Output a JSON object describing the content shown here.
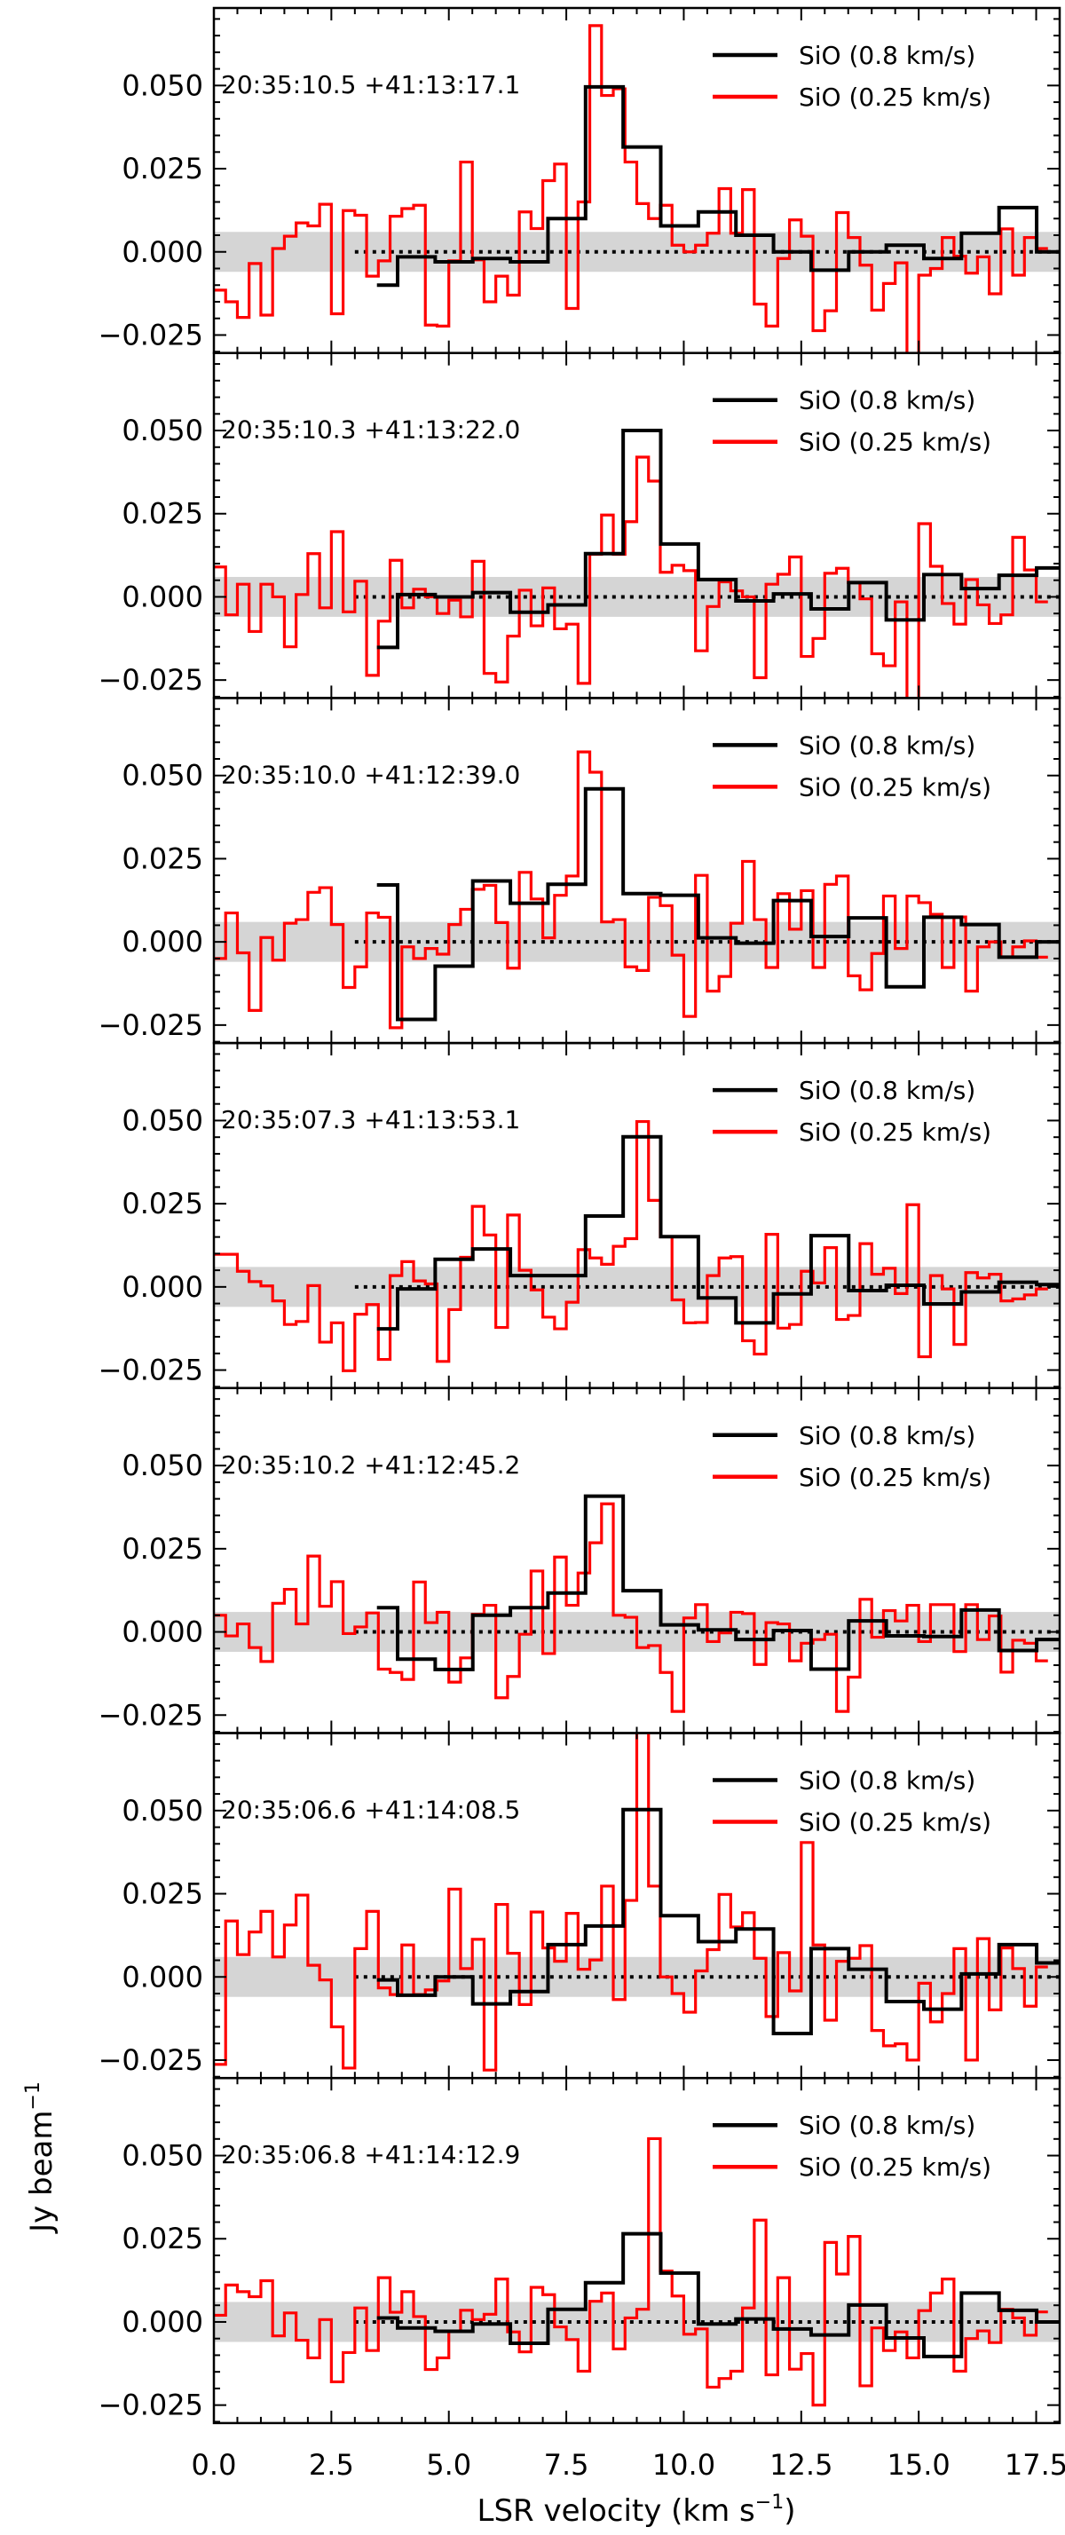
{
  "chart_data": {
    "type": "line",
    "title": "",
    "xlabel": "LSR velocity (km s",
    "xlabel_sup": "−1",
    "xlabel_end": ")",
    "ylabel": "Jy beam",
    "ylabel_sup": "−1",
    "xlim": [
      0,
      18
    ],
    "ylim": [
      -0.0304,
      0.0733
    ],
    "xticks": [
      0,
      2.5,
      5,
      7.5,
      10,
      12.5,
      15,
      17.5
    ],
    "xtick_labels": [
      "0.0",
      "2.5",
      "5.0",
      "7.5",
      "10.0",
      "12.5",
      "15.0",
      "17.5"
    ],
    "yticks": [
      -0.025,
      0,
      0.025,
      0.05
    ],
    "ytick_labels": [
      "−0.025",
      "0.000",
      "0.025",
      "0.050"
    ],
    "noise_band": [
      -0.006,
      0.006
    ],
    "zero_line_range": [
      3.0,
      18
    ],
    "legend_placement": "top-right",
    "colors": {
      "black_series": "#000000",
      "red_series": "#ff0000",
      "band": "#d3d3d3"
    },
    "red_x0": 0,
    "red_width": 0.25,
    "black_start": 3.47,
    "black_first_bin_end": 3.91,
    "black_width": 0.8,
    "legend": [
      "SiO (0.8 km/s)",
      "SiO (0.25 km/s)"
    ],
    "panels": [
      {
        "label": "20:35:10.5 +41:13:17.1",
        "black": [
          -0.01,
          -0.0015,
          -0.003,
          -0.002,
          -0.003,
          0.01,
          0.0496,
          0.0315,
          0.0078,
          0.012,
          0.005,
          0.0,
          -0.0055,
          0.0,
          0.002,
          -0.002,
          0.0056,
          0.0133,
          0.0
        ],
        "red": [
          -0.0115,
          -0.015,
          -0.0197,
          -0.0035,
          -0.019,
          0.001,
          0.0047,
          0.0087,
          0.0078,
          0.0143,
          -0.0186,
          0.0124,
          0.011,
          -0.0073,
          -0.0027,
          0.0107,
          0.013,
          0.014,
          -0.022,
          -0.0223,
          -0.0027,
          0.027,
          -0.0024,
          -0.015,
          -0.0073,
          -0.013,
          0.012,
          0.007,
          0.0214,
          0.0264,
          -0.017,
          0.015,
          0.068,
          0.047,
          0.049,
          0.027,
          0.0145,
          0.01,
          0.014,
          0.002,
          0.0,
          0.002,
          0.0056,
          0.019,
          0.0056,
          0.0187,
          -0.0157,
          -0.0223,
          -0.002,
          0.0096,
          0.0047,
          -0.0237,
          -0.0177,
          0.0118,
          0.0043,
          -0.004,
          -0.0175,
          -0.0095,
          -0.0033,
          -0.031,
          -0.007,
          -0.005,
          0.0043,
          -0.0013,
          -0.0064,
          -0.0015,
          -0.0126,
          0.0069,
          -0.007,
          0.0043,
          0.001
        ]
      },
      {
        "label": "20:35:10.3 +41:13:22.0",
        "black": [
          -0.0152,
          0.0007,
          0.0,
          0.0013,
          -0.0046,
          -0.0024,
          0.013,
          0.05,
          0.0159,
          0.0052,
          -0.0012,
          0.0009,
          -0.0036,
          0.0043,
          -0.0069,
          0.0067,
          0.0025,
          0.0065,
          0.0087
        ],
        "red": [
          0.009,
          -0.0054,
          0.0038,
          -0.0104,
          0.0038,
          0.0,
          -0.015,
          0.0007,
          0.013,
          -0.0033,
          0.0196,
          -0.0045,
          0.0047,
          -0.0236,
          -0.0073,
          0.011,
          -0.0033,
          0.0023,
          0.0,
          -0.005,
          -0.001,
          -0.006,
          0.0107,
          -0.023,
          -0.0256,
          -0.0118,
          0.002,
          -0.0087,
          0.0027,
          -0.0096,
          -0.0082,
          -0.026,
          0.0128,
          0.0246,
          0.0128,
          0.0226,
          0.042,
          0.0348,
          0.0074,
          0.0095,
          0.0079,
          -0.0162,
          -0.0029,
          0.0045,
          0.0018,
          0.0,
          -0.0243,
          0.0038,
          0.0068,
          0.012,
          -0.0179,
          -0.0125,
          0.0071,
          0.0086,
          0.0043,
          -0.0006,
          -0.0171,
          -0.0207,
          -0.0015,
          -0.031,
          0.022,
          0.0092,
          -0.002,
          -0.0082,
          0.0052,
          -0.0024,
          -0.008,
          -0.0054,
          0.0179,
          0.0081,
          -0.0015
        ]
      },
      {
        "label": "20:35:10.0 +41:12:39.0",
        "black": [
          0.0171,
          -0.0233,
          -0.0073,
          0.0183,
          0.0116,
          0.0173,
          0.046,
          0.0145,
          0.014,
          0.0012,
          -0.0004,
          0.0124,
          0.0016,
          0.0072,
          -0.0135,
          0.0074,
          0.0052,
          -0.0046,
          0.0
        ],
        "red": [
          -0.005,
          0.0087,
          -0.0033,
          -0.0206,
          0.0013,
          -0.0055,
          0.0056,
          0.0067,
          0.0149,
          0.0163,
          0.0052,
          -0.0137,
          -0.0075,
          0.0087,
          0.0074,
          -0.0258,
          -0.0015,
          -0.005,
          -0.002,
          -0.0037,
          0.0052,
          0.0098,
          0.0158,
          0.017,
          0.0058,
          -0.0079,
          0.0209,
          0.0129,
          0.0012,
          0.014,
          0.0198,
          0.0571,
          0.051,
          0.006,
          0.0067,
          -0.0075,
          -0.0086,
          0.0134,
          0.0109,
          -0.004,
          -0.0224,
          0.02,
          -0.0148,
          -0.0104,
          0.0056,
          0.0242,
          0.0067,
          -0.0077,
          0.0145,
          0.0038,
          0.0154,
          -0.0077,
          0.0173,
          0.0198,
          -0.0102,
          -0.0144,
          -0.0035,
          0.0138,
          -0.002,
          0.0138,
          0.0118,
          0.0083,
          -0.0077,
          0.0075,
          -0.0148,
          -0.0015,
          0.0,
          -0.0046,
          -0.0015,
          0.0003,
          -0.0046
        ]
      },
      {
        "label": "20:35:07.3 +41:13:53.1",
        "black": [
          -0.0126,
          -0.0006,
          0.0083,
          0.0114,
          0.0034,
          0.0034,
          0.0213,
          0.0451,
          0.0151,
          -0.0033,
          -0.0108,
          -0.0021,
          0.0154,
          -0.0011,
          0.0005,
          -0.0051,
          -0.0015,
          0.0014,
          0.0007
        ],
        "red": [
          0.0098,
          0.0098,
          0.0047,
          0.0016,
          0.0003,
          -0.0042,
          -0.0113,
          -0.0104,
          0.0004,
          -0.0166,
          -0.0108,
          -0.0252,
          -0.0082,
          -0.0053,
          -0.0218,
          0.0034,
          0.0076,
          0.0018,
          0.0009,
          -0.0224,
          -0.0068,
          0.0089,
          0.0242,
          0.0156,
          -0.0122,
          0.0216,
          0.005,
          -0.0009,
          -0.0091,
          -0.0126,
          -0.0046,
          0.0112,
          0.0087,
          0.0068,
          0.0122,
          0.0145,
          0.0497,
          0.026,
          0.0151,
          -0.0039,
          -0.0108,
          -0.0107,
          0.0034,
          0.0087,
          0.0091,
          -0.0162,
          -0.0202,
          0.0158,
          -0.0124,
          -0.0113,
          0.0047,
          0.0012,
          0.0118,
          -0.0098,
          -0.0086,
          0.013,
          0.0038,
          0.0056,
          -0.002,
          0.0247,
          -0.021,
          0.0034,
          -0.0006,
          -0.0173,
          0.0043,
          0.0027,
          0.0038,
          -0.0042,
          -0.0036,
          -0.0024,
          -0.0006
        ]
      },
      {
        "label": "20:35:10.2 +41:12:45.2",
        "black": [
          0.0073,
          -0.0082,
          -0.0113,
          0.005,
          0.0073,
          0.0117,
          0.0408,
          0.0124,
          0.0021,
          0.0006,
          -0.0023,
          0.0004,
          -0.0112,
          0.0033,
          -0.0012,
          -0.0014,
          0.0066,
          -0.0056,
          -0.0023
        ],
        "red": [
          0.005,
          -0.0012,
          0.0024,
          -0.0047,
          -0.0089,
          0.0086,
          0.0128,
          0.0024,
          0.0228,
          0.0077,
          0.0151,
          -0.0005,
          0.0015,
          0.0057,
          -0.0112,
          -0.0122,
          -0.0143,
          0.015,
          0.0028,
          0.0059,
          -0.0151,
          -0.0078,
          0.0053,
          0.008,
          -0.0198,
          -0.0134,
          -0.0007,
          0.0183,
          -0.0065,
          0.0225,
          0.008,
          0.0177,
          0.0268,
          0.0385,
          0.005,
          0.0044,
          -0.0047,
          -0.0041,
          -0.0122,
          -0.0239,
          0.0042,
          0.0082,
          -0.0029,
          -0.0003,
          0.0059,
          0.0055,
          -0.0098,
          0.0028,
          0.0024,
          -0.0087,
          -0.0034,
          -0.0023,
          -0.0007,
          -0.0239,
          -0.0136,
          0.0098,
          -0.0016,
          0.0064,
          0.0033,
          0.008,
          -0.0029,
          0.0082,
          0.0082,
          -0.0059,
          0.0082,
          -0.0023,
          0.0048,
          -0.0121,
          -0.0025,
          -0.0034,
          -0.0087
        ]
      },
      {
        "label": "20:35:06.6 +41:14:08.5",
        "black": [
          -0.0009,
          -0.0055,
          0.0,
          -0.0081,
          -0.0044,
          0.0097,
          0.0153,
          0.0503,
          0.0184,
          0.0106,
          0.0144,
          -0.017,
          0.0085,
          0.0023,
          -0.0074,
          -0.0097,
          0.0009,
          0.0097,
          0.0042
        ],
        "red": [
          -0.0263,
          0.0168,
          0.0067,
          0.0135,
          0.0197,
          0.006,
          0.0156,
          0.0246,
          0.0035,
          -0.0009,
          -0.015,
          -0.0274,
          0.0085,
          0.0197,
          -0.0033,
          -0.0053,
          0.0096,
          -0.0053,
          -0.0039,
          -0.0012,
          0.0264,
          0.0025,
          0.0113,
          -0.028,
          0.0218,
          0.0071,
          -0.0083,
          0.0195,
          0.0087,
          0.0047,
          0.0191,
          0.0023,
          0.0051,
          0.0273,
          -0.0068,
          0.023,
          0.08,
          0.0273,
          0.0,
          -0.005,
          -0.0106,
          0.0018,
          0.0082,
          0.0248,
          0.015,
          0.0193,
          0.0056,
          -0.0119,
          0.0073,
          -0.0042,
          0.0404,
          0.0096,
          -0.013,
          0.0047,
          0.0056,
          0.0094,
          -0.0161,
          -0.0207,
          -0.0201,
          -0.025,
          -0.0019,
          -0.0135,
          -0.005,
          0.0085,
          -0.025,
          0.0115,
          -0.0099,
          0.0087,
          0.0025,
          -0.0088,
          0.003
        ]
      },
      {
        "label": "20:35:06.8 +41:14:12.9",
        "black": [
          0.0012,
          -0.0018,
          -0.0028,
          -0.0006,
          -0.0064,
          0.0038,
          0.0118,
          0.0265,
          0.0147,
          -0.0006,
          0.0009,
          -0.0021,
          -0.0039,
          0.0051,
          -0.0048,
          -0.0104,
          0.0087,
          0.0035,
          0.0
        ],
        "red": [
          0.002,
          0.0111,
          0.0091,
          0.0076,
          0.0124,
          -0.0042,
          0.0027,
          -0.0055,
          -0.0108,
          0.0007,
          -0.018,
          -0.0092,
          0.0042,
          -0.0086,
          0.0133,
          0.0029,
          0.0091,
          0.0016,
          -0.0143,
          -0.0108,
          -0.0027,
          0.0035,
          0.0007,
          0.0023,
          0.0129,
          -0.003,
          -0.009,
          0.0104,
          0.0082,
          -0.0015,
          -0.0053,
          -0.0148,
          0.0062,
          0.0087,
          -0.0081,
          0.0012,
          0.0038,
          0.0551,
          0.0153,
          0.0078,
          -0.0037,
          -0.0021,
          -0.0196,
          -0.017,
          -0.0148,
          0.0042,
          0.0306,
          -0.0159,
          0.0133,
          -0.0142,
          -0.0095,
          -0.025,
          0.0239,
          0.0144,
          0.0257,
          -0.0192,
          -0.0018,
          -0.0086,
          -0.003,
          -0.0108,
          0.0034,
          0.0087,
          0.0129,
          -0.0148,
          -0.005,
          -0.0027,
          -0.0062,
          0.0038,
          0.0012,
          -0.004,
          0.003
        ]
      }
    ]
  }
}
